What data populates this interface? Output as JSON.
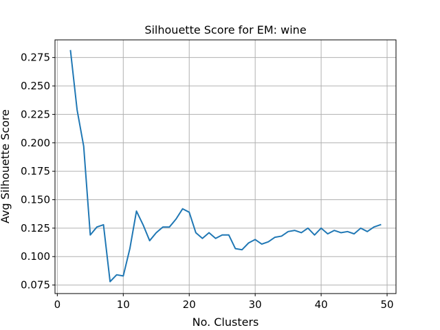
{
  "chart_data": {
    "type": "line",
    "title": "Silhouette Score  for EM: wine",
    "xlabel": "No. Clusters",
    "ylabel": "Avg Silhouette Score",
    "xlim": [
      -0.35,
      51.35
    ],
    "ylim": [
      0.0675,
      0.2905
    ],
    "xticks": [
      0,
      10,
      20,
      30,
      40,
      50
    ],
    "xtick_labels": [
      "0",
      "10",
      "20",
      "30",
      "40",
      "50"
    ],
    "yticks": [
      0.075,
      0.1,
      0.125,
      0.15,
      0.175,
      0.2,
      0.225,
      0.25,
      0.275
    ],
    "ytick_labels": [
      "0.075",
      "0.100",
      "0.125",
      "0.150",
      "0.175",
      "0.200",
      "0.225",
      "0.250",
      "0.275"
    ],
    "grid": true,
    "line_color": "#1f77b4",
    "series": [
      {
        "x": [
          2,
          3,
          4,
          5,
          6,
          7,
          8,
          9,
          10,
          11,
          12,
          13,
          14,
          15,
          16,
          17,
          18,
          19,
          20,
          21,
          22,
          23,
          24,
          25,
          26,
          27,
          28,
          29,
          30,
          31,
          32,
          33,
          34,
          35,
          36,
          37,
          38,
          39,
          40,
          41,
          42,
          43,
          44,
          45,
          46,
          47,
          48,
          49
        ],
        "values": [
          0.281,
          0.229,
          0.197,
          0.119,
          0.126,
          0.128,
          0.078,
          0.084,
          0.083,
          0.107,
          0.14,
          0.128,
          0.114,
          0.121,
          0.126,
          0.126,
          0.133,
          0.142,
          0.139,
          0.121,
          0.116,
          0.121,
          0.116,
          0.119,
          0.119,
          0.107,
          0.106,
          0.112,
          0.115,
          0.111,
          0.113,
          0.117,
          0.118,
          0.122,
          0.123,
          0.121,
          0.125,
          0.119,
          0.125,
          0.12,
          0.123,
          0.121,
          0.122,
          0.12,
          0.125,
          0.122,
          0.126,
          0.128
        ]
      }
    ]
  }
}
